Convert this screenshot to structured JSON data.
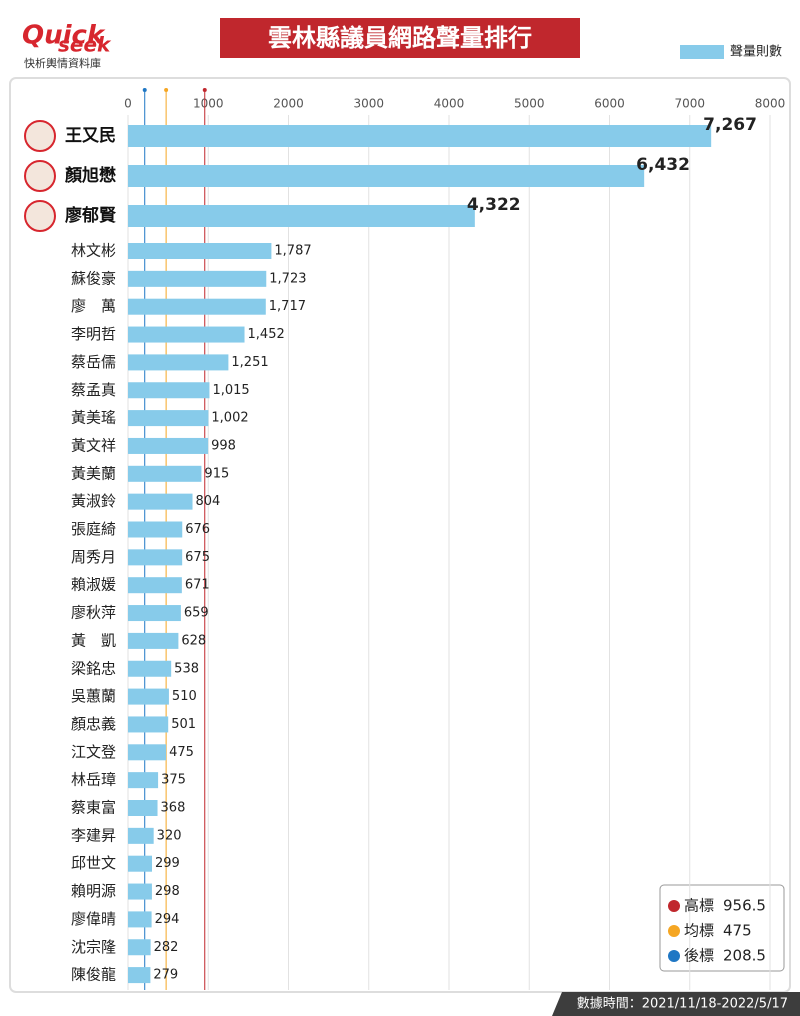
{
  "logo": {
    "line1": "Quick",
    "line2": "seek",
    "tagline": "快析輿情資料庫"
  },
  "chart_data": {
    "type": "hbar",
    "title": "雲林縣議員網路聲量排行",
    "note": "數據時間：2021/11/18-2022/5/17",
    "categories": [
      "王又民",
      "顏旭懋",
      "廖郁賢",
      "林文彬",
      "蘇俊豪",
      "廖　萬",
      "李明哲",
      "蔡岳儒",
      "蔡孟真",
      "黃美瑤",
      "黃文祥",
      "黃美蘭",
      "黃淑鈴",
      "張庭綺",
      "周秀月",
      "賴淑媛",
      "廖秋萍",
      "黃　凱",
      "梁銘忠",
      "吳蕙蘭",
      "顏忠義",
      "江文登",
      "林岳璋",
      "蔡東富",
      "李建昇",
      "邱世文",
      "賴明源",
      "廖偉晴",
      "沈宗隆",
      "陳俊龍"
    ],
    "series": [
      {
        "name": "聲量則數",
        "color": "#87cbea",
        "values": [
          7267,
          6432,
          4322,
          1787,
          1723,
          1717,
          1452,
          1251,
          1015,
          1002,
          998,
          915,
          804,
          676,
          675,
          671,
          659,
          628,
          538,
          510,
          501,
          475,
          375,
          368,
          320,
          299,
          298,
          294,
          282,
          279
        ],
        "value_labels": [
          "7,267",
          "6,432",
          "4,322",
          "1,787",
          "1,723",
          "1,717",
          "1,452",
          "1,251",
          "1,015",
          "1,002",
          "998",
          "915",
          "804",
          "676",
          "675",
          "671",
          "659",
          "628",
          "538",
          "510",
          "501",
          "475",
          "375",
          "368",
          "320",
          "299",
          "298",
          "294",
          "282",
          "279"
        ]
      }
    ],
    "xlim": [
      0,
      8000
    ],
    "xticks": [
      0,
      1000,
      2000,
      3000,
      4000,
      5000,
      6000,
      7000,
      8000
    ],
    "grid": true,
    "reference_lines": [
      {
        "name": "高標",
        "value": 956.5,
        "color": "#c0272d"
      },
      {
        "name": "均標",
        "value": 475,
        "color": "#f5a623"
      },
      {
        "name": "後標",
        "value": 208.5,
        "color": "#1f77c4"
      }
    ]
  }
}
